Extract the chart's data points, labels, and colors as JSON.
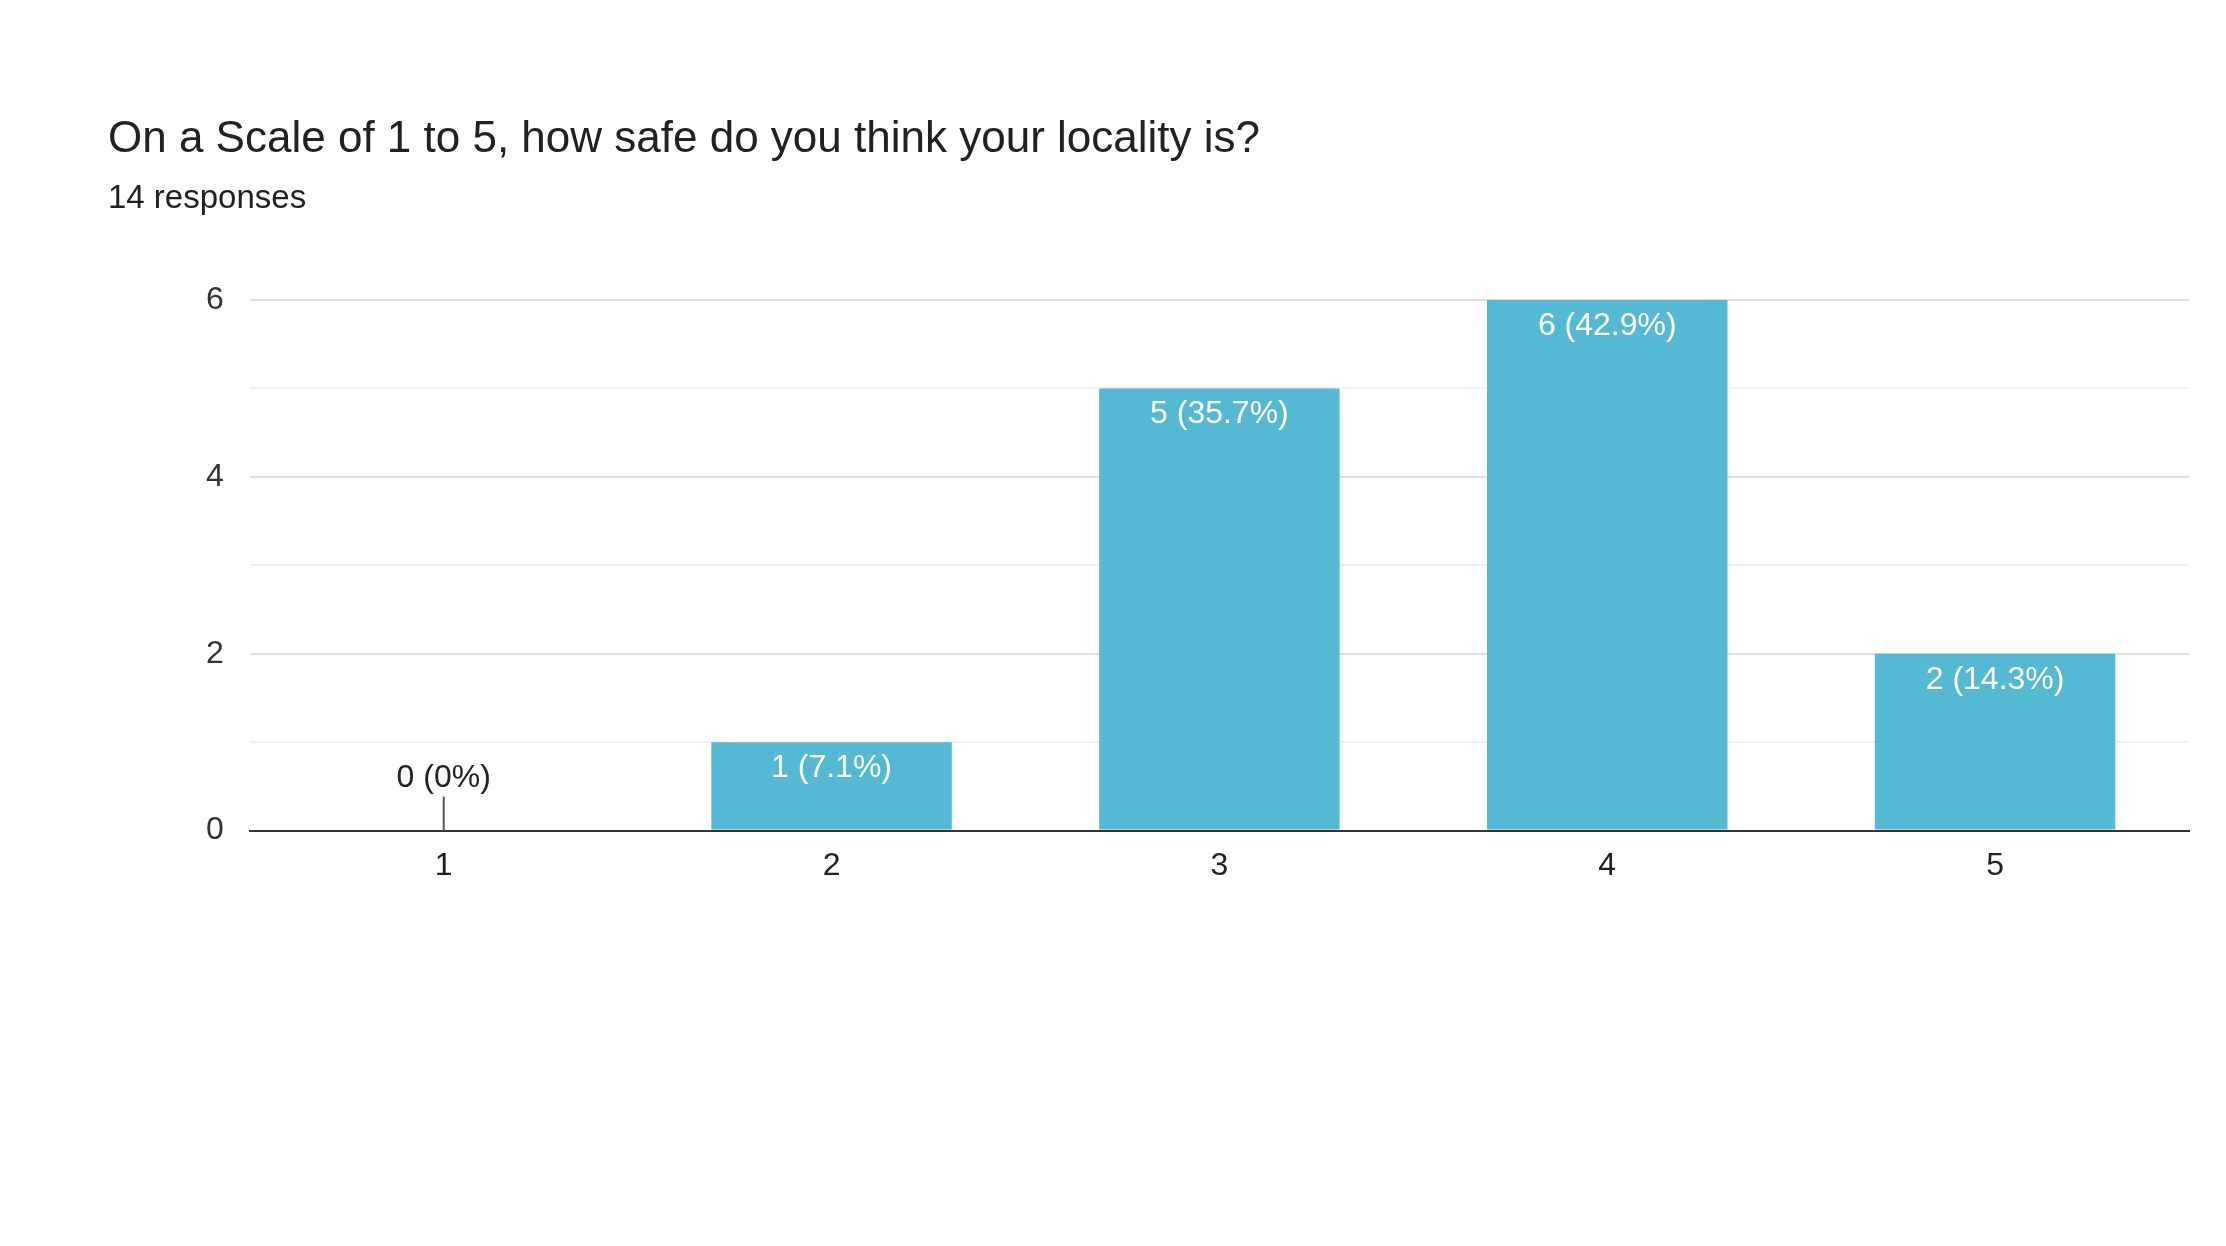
{
  "chart_data": {
    "type": "bar",
    "title": "On a Scale of 1 to 5, how safe do you think your locality is?",
    "subtitle": "14 responses",
    "categories": [
      "1",
      "2",
      "3",
      "4",
      "5"
    ],
    "values": [
      0,
      1,
      5,
      6,
      2
    ],
    "value_labels": [
      "0 (0%)",
      "1 (7.1%)",
      "5 (35.7%)",
      "6 (42.9%)",
      "2 (14.3%)"
    ],
    "color": "#55b9d3",
    "ylim": [
      0,
      6
    ],
    "yticks": [
      0,
      {
        "value": 1,
        "label": null
      },
      2,
      {
        "value": 3,
        "label": null
      },
      4,
      {
        "value": 5,
        "label": null
      },
      6
    ],
    "grid": "y",
    "legend": false
  }
}
